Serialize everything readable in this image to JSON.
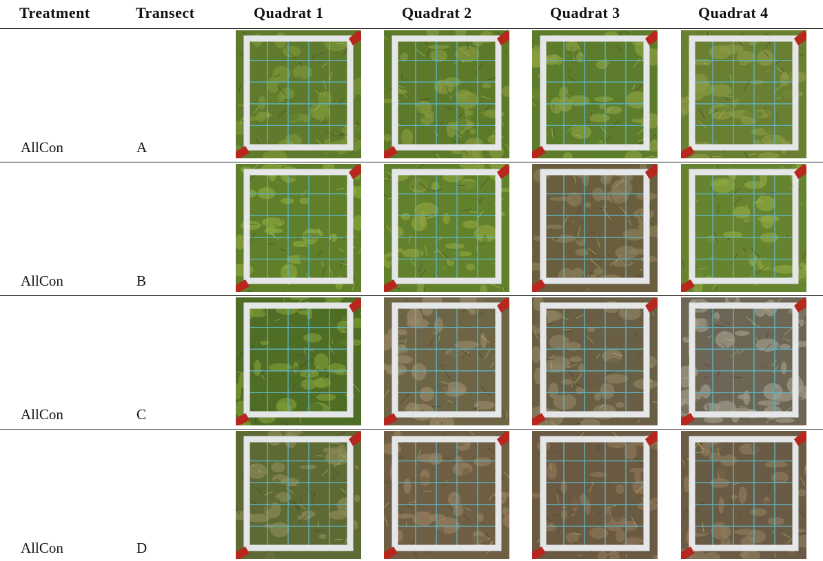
{
  "table": {
    "header": [
      "Treatment",
      "Transect",
      "Quadrat 1",
      "Quadrat 2",
      "Quadrat 3",
      "Quadrat 4"
    ],
    "rows": [
      [
        "AllCon",
        "A"
      ],
      [
        "AllCon",
        "B"
      ],
      [
        "AllCon",
        "C"
      ],
      [
        "AllCon",
        "D"
      ]
    ]
  }
}
